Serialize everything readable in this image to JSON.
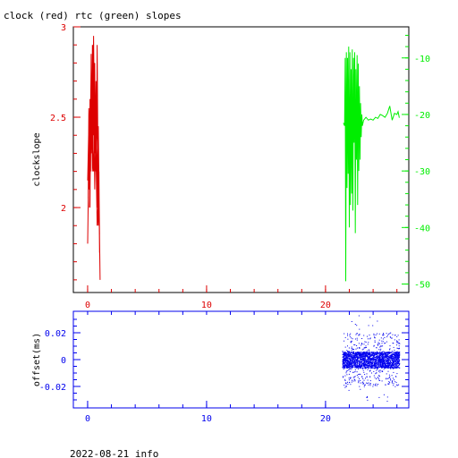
{
  "title": "clock (red) rtc (green) slopes",
  "footer": "2022-08-21 info",
  "colors": {
    "clock": "#dd0000",
    "rtc": "#00ee00",
    "offset": "#0000ee",
    "frame": "#000000"
  },
  "chart_data": [
    {
      "type": "line",
      "panel": "top",
      "ylabel": "clockslope",
      "y2label": "",
      "xlim": [
        -1.2,
        27
      ],
      "ylim": [
        1.53,
        3.0
      ],
      "y2lim": [
        -51.5,
        -4.5
      ],
      "xticks": [
        0,
        10,
        20
      ],
      "xtick_labels": [
        "0",
        "10",
        "20"
      ],
      "yticks": [
        2,
        2.5,
        3
      ],
      "ytick_labels": [
        "2",
        "2.5",
        "3"
      ],
      "y2ticks": [
        -50,
        -40,
        -30,
        -20,
        -10
      ],
      "y2tick_labels": [
        "-50",
        "-40",
        "-30",
        "-20",
        "-10"
      ],
      "series": [
        {
          "axis": "left",
          "x": [
            0.0,
            0.1,
            0.15,
            0.2,
            0.25,
            0.3,
            0.35,
            0.4,
            0.45,
            0.5,
            0.55,
            0.6,
            0.65,
            0.7,
            0.75,
            0.8,
            0.85,
            0.9,
            0.95,
            1.0,
            0.95,
            0.9,
            0.85,
            0.8,
            0.75,
            0.7,
            0.65,
            0.6,
            0.55,
            0.5,
            0.45,
            0.4,
            0.35,
            0.3,
            0.25,
            0.2,
            0.15,
            0.1,
            0.05,
            0.0,
            0.1,
            0.2,
            0.3,
            0.4,
            0.5,
            0.6,
            0.7,
            0.8,
            0.9,
            1.0,
            0.9,
            0.8,
            0.7,
            0.6,
            0.5,
            0.4,
            0.3,
            0.2,
            0.1,
            0.05,
            0.2,
            0.35,
            0.5,
            0.65,
            0.8,
            0.95,
            1.05,
            0.9,
            0.7,
            0.5,
            0.3,
            0.15
          ],
          "y": [
            1.8,
            2.3,
            2.1,
            2.6,
            2.2,
            2.85,
            2.4,
            2.9,
            2.5,
            2.95,
            2.6,
            2.8,
            2.3,
            2.7,
            2.1,
            2.9,
            2.4,
            1.9,
            2.2,
            1.75,
            2.1,
            1.95,
            2.3,
            2.0,
            2.4,
            2.2,
            2.6,
            2.3,
            2.75,
            2.4,
            2.9,
            2.5,
            2.7,
            2.3,
            2.6,
            2.0,
            2.35,
            2.1,
            2.25,
            2.15,
            2.45,
            2.05,
            2.7,
            2.2,
            2.85,
            2.35,
            2.6,
            2.15,
            2.45,
            1.85,
            2.3,
            2.0,
            2.5,
            2.1,
            2.65,
            2.25,
            2.8,
            2.3,
            2.55,
            2.05,
            2.4,
            2.7,
            2.2,
            2.5,
            1.9,
            2.1,
            1.6,
            2.3,
            2.6,
            2.2,
            2.4,
            2.0
          ]
        },
        {
          "axis": "right",
          "x": [
            21.5,
            21.6,
            21.65,
            21.7,
            21.75,
            21.8,
            21.85,
            21.9,
            21.95,
            22.0,
            22.05,
            22.1,
            22.15,
            22.2,
            22.25,
            22.3,
            22.35,
            22.4,
            22.45,
            22.5,
            22.55,
            22.6,
            22.65,
            22.7,
            22.75,
            22.8,
            22.85,
            22.9,
            22.95,
            23.0,
            23.05,
            23.1,
            23.2,
            23.4,
            23.6,
            23.8,
            24.0,
            24.2,
            24.4,
            24.6,
            24.8,
            25.0,
            25.2,
            25.4,
            25.6,
            25.8,
            26.0,
            26.1,
            26.2
          ],
          "y": [
            -21.5,
            -22.0,
            -10.0,
            -49.5,
            -9.0,
            -33.0,
            -10.0,
            -30.5,
            -8.0,
            -40.0,
            -9.0,
            -36.0,
            -12.0,
            -34.0,
            -8.5,
            -37.0,
            -10.0,
            -25.0,
            -9.0,
            -41.0,
            -12.0,
            -28.0,
            -9.5,
            -36.0,
            -11.0,
            -30.0,
            -15.0,
            -28.0,
            -18.0,
            -24.0,
            -20.0,
            -22.0,
            -21.0,
            -20.5,
            -21.0,
            -20.8,
            -21.0,
            -20.5,
            -20.7,
            -20.0,
            -20.2,
            -20.5,
            -19.8,
            -18.5,
            -21.0,
            -19.8,
            -20.0,
            -19.5,
            -20.6
          ]
        }
      ]
    },
    {
      "type": "scatter",
      "panel": "bottom",
      "ylabel": "offset(ms)",
      "xlim": [
        -1.2,
        27
      ],
      "ylim": [
        -0.036,
        0.036
      ],
      "xticks": [
        0,
        10,
        20
      ],
      "xtick_labels": [
        "0",
        "10",
        "20"
      ],
      "yticks": [
        -0.02,
        0,
        0.02
      ],
      "ytick_labels": [
        "-0.02",
        "0",
        "0.02"
      ],
      "series": [
        {
          "x_range": [
            21.4,
            26.2
          ],
          "y_band": [
            -0.006,
            0.006
          ],
          "y_spread": [
            -0.031,
            0.034
          ],
          "approx_points": 2400
        }
      ]
    }
  ]
}
